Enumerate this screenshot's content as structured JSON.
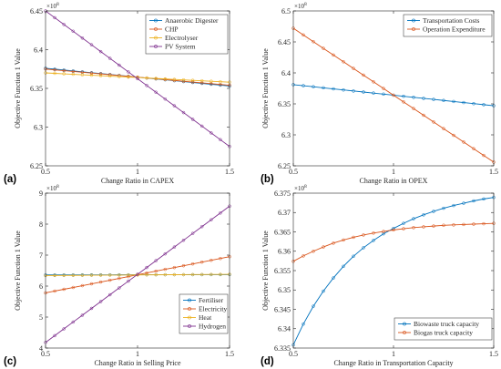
{
  "chart_data": [
    {
      "panel": "(a)",
      "type": "line",
      "xlabel": "Change Ratio in CAPEX",
      "ylabel": "Objective Function 1 Value",
      "multiplier": "10",
      "multiplier_exp": "8",
      "xlim": [
        0.5,
        1.5
      ],
      "ylim": [
        6.25,
        6.45
      ],
      "xticks": [
        0.5,
        1,
        1.5
      ],
      "xtick_labels": [
        "0.5",
        "1",
        "1.5"
      ],
      "yticks": [
        6.25,
        6.3,
        6.35,
        6.4,
        6.45
      ],
      "ytick_labels": [
        "6.25",
        "6.3",
        "6.35",
        "6.4",
        "6.45"
      ],
      "legend_pos": "top-right",
      "series": [
        {
          "name": "Anaerobic Digester",
          "color": "#0072bd",
          "y0": 6.376,
          "y1": 6.353
        },
        {
          "name": "CHP",
          "color": "#d95319",
          "y0": 6.375,
          "y1": 6.354
        },
        {
          "name": "Electrolyser",
          "color": "#edb120",
          "y0": 6.37,
          "y1": 6.358
        },
        {
          "name": "PV System",
          "color": "#7e2f8e",
          "y0": 6.45,
          "y1": 6.275
        }
      ]
    },
    {
      "panel": "(b)",
      "type": "line",
      "xlabel": "Change Ratio in OPEX",
      "ylabel": "Objective Function 1 Value",
      "multiplier": "10",
      "multiplier_exp": "8",
      "xlim": [
        0.5,
        1.5
      ],
      "ylim": [
        6.25,
        6.5
      ],
      "xticks": [
        0.5,
        1,
        1.5
      ],
      "xtick_labels": [
        "0.5",
        "1",
        "1.5"
      ],
      "yticks": [
        6.25,
        6.3,
        6.35,
        6.4,
        6.45,
        6.5
      ],
      "ytick_labels": [
        "6.25",
        "6.3",
        "6.35",
        "6.4",
        "6.45",
        "6.5"
      ],
      "legend_pos": "top-right",
      "series": [
        {
          "name": "Transportation Costs",
          "color": "#0072bd",
          "y0": 6.381,
          "y1": 6.347
        },
        {
          "name": "Operation Expenditure",
          "color": "#d95319",
          "y0": 6.472,
          "y1": 6.256
        }
      ]
    },
    {
      "panel": "(c)",
      "type": "line",
      "xlabel": "Change Ratio in Selling Price",
      "ylabel": "Objective Function 1 Value",
      "multiplier": "10",
      "multiplier_exp": "8",
      "xlim": [
        0.5,
        1.5
      ],
      "ylim": [
        4,
        9
      ],
      "xticks": [
        0.5,
        1,
        1.5
      ],
      "xtick_labels": [
        "0.5",
        "1",
        "1.5"
      ],
      "yticks": [
        4,
        5,
        6,
        7,
        8,
        9
      ],
      "ytick_labels": [
        "4",
        "5",
        "6",
        "7",
        "8",
        "9"
      ],
      "legend_pos": "bottom-right",
      "series": [
        {
          "name": "Fertiliser",
          "color": "#0072bd",
          "y0": 6.36,
          "y1": 6.37
        },
        {
          "name": "Electricity",
          "color": "#d95319",
          "y0": 5.78,
          "y1": 6.95
        },
        {
          "name": "Heat",
          "color": "#edb120",
          "y0": 6.34,
          "y1": 6.38
        },
        {
          "name": "Hydrogen",
          "color": "#7e2f8e",
          "y0": 4.18,
          "y1": 8.58
        }
      ]
    },
    {
      "panel": "(d)",
      "type": "line",
      "xlabel": "Change Ratio in Transportation Capacity",
      "ylabel": "Objective Function 1 Value",
      "multiplier": "10",
      "multiplier_exp": "8",
      "xlim": [
        0.5,
        1.5
      ],
      "ylim": [
        6.335,
        6.375
      ],
      "xticks": [
        0.5,
        1,
        1.5
      ],
      "xtick_labels": [
        "0.5",
        "1",
        "1.5"
      ],
      "yticks": [
        6.335,
        6.34,
        6.345,
        6.35,
        6.355,
        6.36,
        6.365,
        6.37,
        6.375
      ],
      "ytick_labels": [
        "6.335",
        "6.34",
        "6.345",
        "6.35",
        "6.355",
        "6.36",
        "6.365",
        "6.37",
        "6.375"
      ],
      "legend_pos": "bottom-right",
      "series": [
        {
          "name": "Biowaste truck capacity",
          "color": "#0072bd",
          "x": [
            0.5,
            0.55,
            0.6,
            0.65,
            0.7,
            0.75,
            0.8,
            0.85,
            0.9,
            0.95,
            1.0,
            1.05,
            1.1,
            1.15,
            1.2,
            1.25,
            1.3,
            1.35,
            1.4,
            1.45,
            1.5
          ],
          "y": [
            6.3358,
            6.3412,
            6.3458,
            6.3497,
            6.3531,
            6.3561,
            6.3587,
            6.3609,
            6.3628,
            6.3645,
            6.3659,
            6.3672,
            6.3684,
            6.3694,
            6.3703,
            6.3711,
            6.3718,
            6.3724,
            6.373,
            6.3735,
            6.3739
          ]
        },
        {
          "name": "Biogas truck capacity",
          "color": "#d95319",
          "x": [
            0.5,
            0.55,
            0.6,
            0.65,
            0.7,
            0.75,
            0.8,
            0.85,
            0.9,
            0.95,
            1.0,
            1.05,
            1.1,
            1.15,
            1.2,
            1.25,
            1.3,
            1.35,
            1.4,
            1.45,
            1.5
          ],
          "y": [
            6.3574,
            6.3588,
            6.36,
            6.3611,
            6.3621,
            6.3629,
            6.3636,
            6.3642,
            6.3647,
            6.3651,
            6.3655,
            6.3658,
            6.3661,
            6.3663,
            6.3665,
            6.3667,
            6.3668,
            6.3669,
            6.367,
            6.3671,
            6.3672
          ]
        }
      ]
    }
  ]
}
